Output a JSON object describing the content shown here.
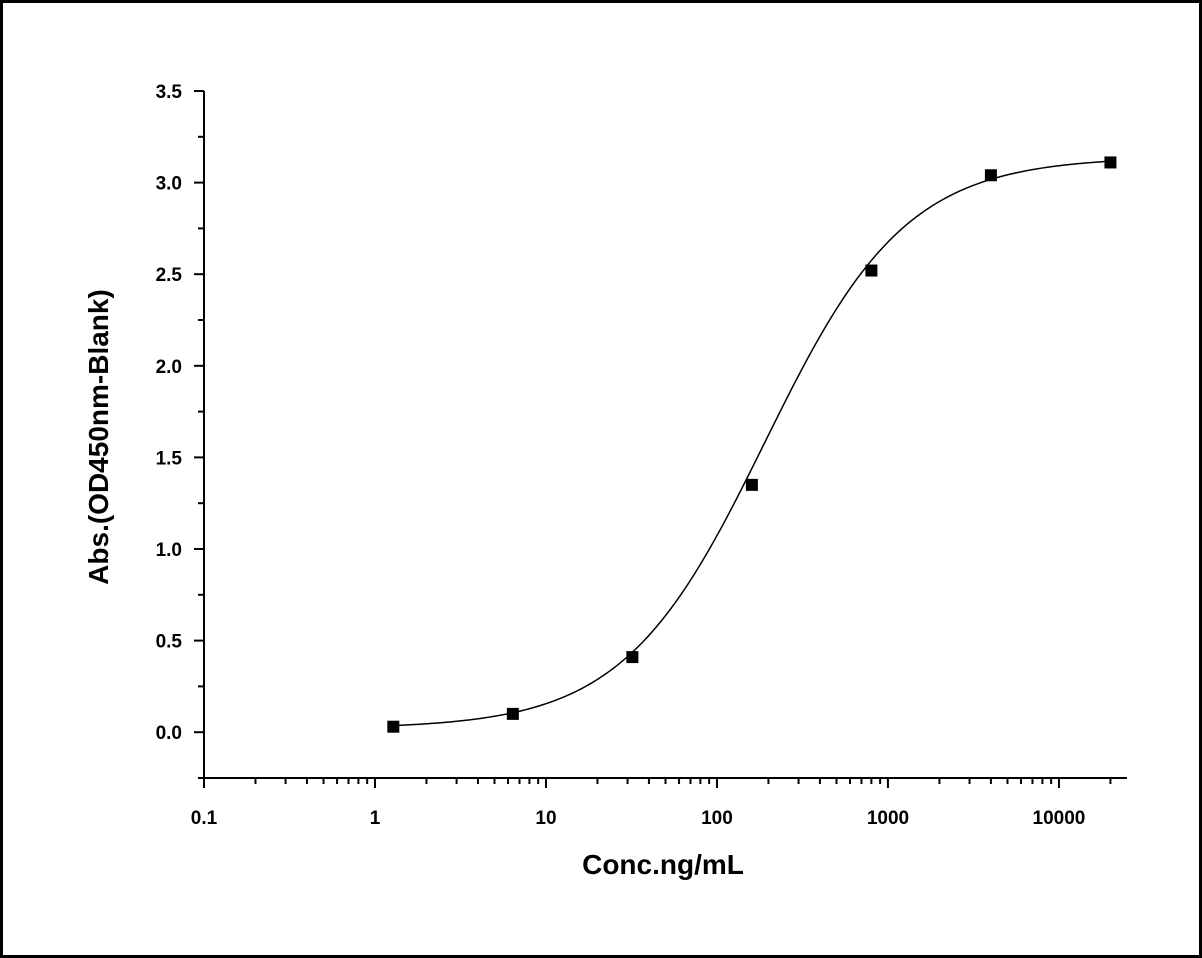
{
  "chart_data": {
    "type": "scatter",
    "title": "",
    "xlabel": "Conc.ng/mL",
    "ylabel": "Abs.(OD450nm-Blank)",
    "x_scale": "log",
    "xlim": [
      0.1,
      25000
    ],
    "ylim": [
      -0.25,
      3.5
    ],
    "x_ticks": [
      0.1,
      1,
      10,
      100,
      1000,
      10000
    ],
    "x_tick_labels": [
      "0.1",
      "1",
      "10",
      "100",
      "1000",
      "10000"
    ],
    "y_ticks": [
      0.0,
      0.5,
      1.0,
      1.5,
      2.0,
      2.5,
      3.0,
      3.5
    ],
    "y_tick_labels": [
      "0.0",
      "0.5",
      "1.0",
      "1.5",
      "2.0",
      "2.5",
      "3.0",
      "3.5"
    ],
    "grid": false,
    "legend": "none",
    "series": [
      {
        "x": [
          1.28,
          6.4,
          32,
          160,
          800,
          4000,
          20000
        ],
        "y": [
          0.03,
          0.1,
          0.41,
          1.35,
          2.52,
          3.04,
          3.11
        ],
        "marker": "square",
        "color": "#000000"
      }
    ],
    "fit": {
      "model": "4PL",
      "bottom": 0.02,
      "top": 3.14,
      "ec50": 190,
      "hill": 1.05,
      "color": "#000000"
    }
  }
}
